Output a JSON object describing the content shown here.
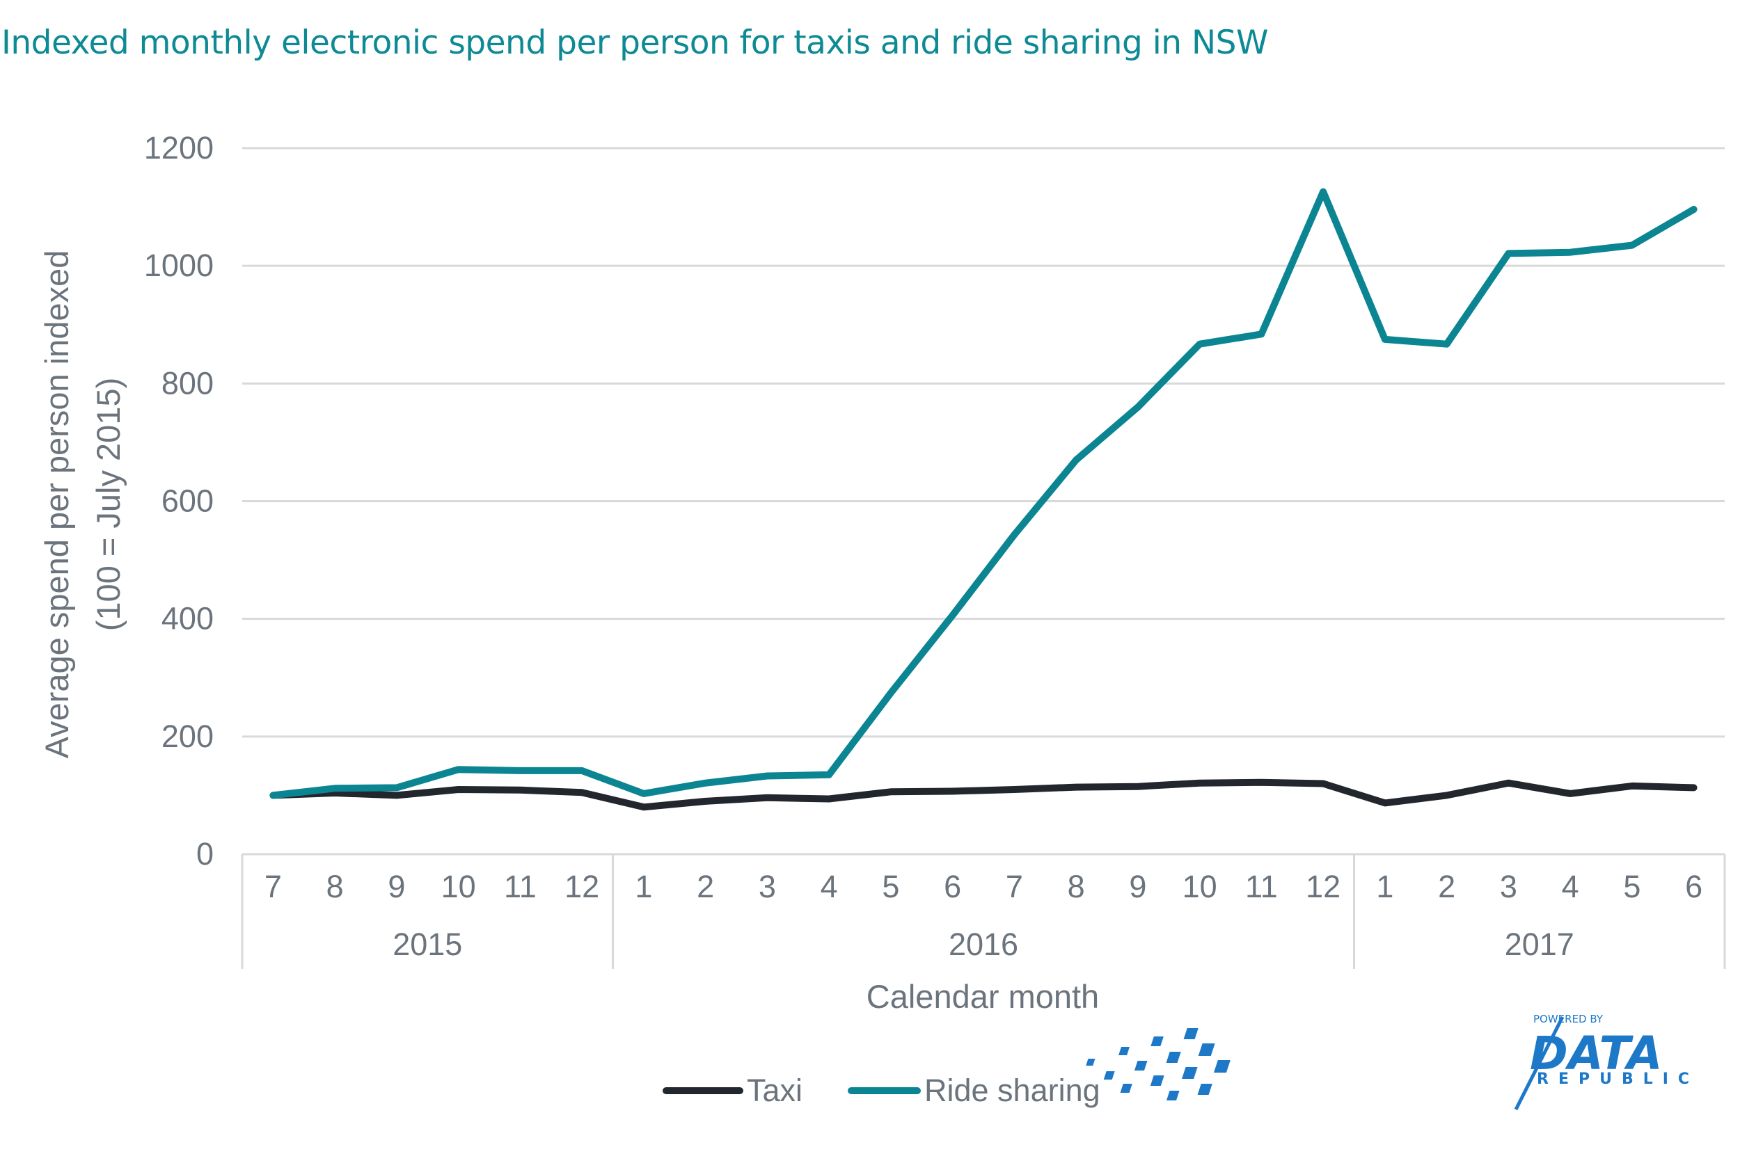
{
  "chart_data": {
    "type": "line",
    "title": "Indexed monthly electronic spend per person for taxis and ride sharing in NSW",
    "xlabel": "Calendar month",
    "ylabel": "Average spend per person indexed",
    "ylabel_sub": "(100 = July 2015)",
    "ylim": [
      0,
      1200
    ],
    "yticks": [
      0,
      200,
      400,
      600,
      800,
      1000,
      1200
    ],
    "grid": true,
    "legend_position": "bottom",
    "categories": [
      "7",
      "8",
      "9",
      "10",
      "11",
      "12",
      "1",
      "2",
      "3",
      "4",
      "5",
      "6",
      "7",
      "8",
      "9",
      "10",
      "11",
      "12",
      "1",
      "2",
      "3",
      "4",
      "5",
      "6"
    ],
    "year_groups": [
      {
        "label": "2015",
        "count": 6
      },
      {
        "label": "2016",
        "count": 12
      },
      {
        "label": "2017",
        "count": 6
      }
    ],
    "series": [
      {
        "name": "Taxi",
        "color": "#22272d",
        "values": [
          100,
          104,
          100,
          110,
          109,
          105,
          80,
          90,
          96,
          94,
          106,
          107,
          110,
          114,
          115,
          121,
          122,
          120,
          87,
          100,
          121,
          103,
          116,
          113
        ]
      },
      {
        "name": "Ride sharing",
        "color": "#0b8592",
        "values": [
          100,
          112,
          113,
          144,
          142,
          142,
          103,
          121,
          133,
          135,
          274,
          406,
          543,
          670,
          760,
          867,
          884,
          1126,
          875,
          867,
          1021,
          1023,
          1035,
          1096
        ]
      }
    ]
  },
  "brand": {
    "top": "POWERED BY",
    "main": "DATA",
    "sub": "REPUBLIC",
    "color": "#1e78c8"
  }
}
